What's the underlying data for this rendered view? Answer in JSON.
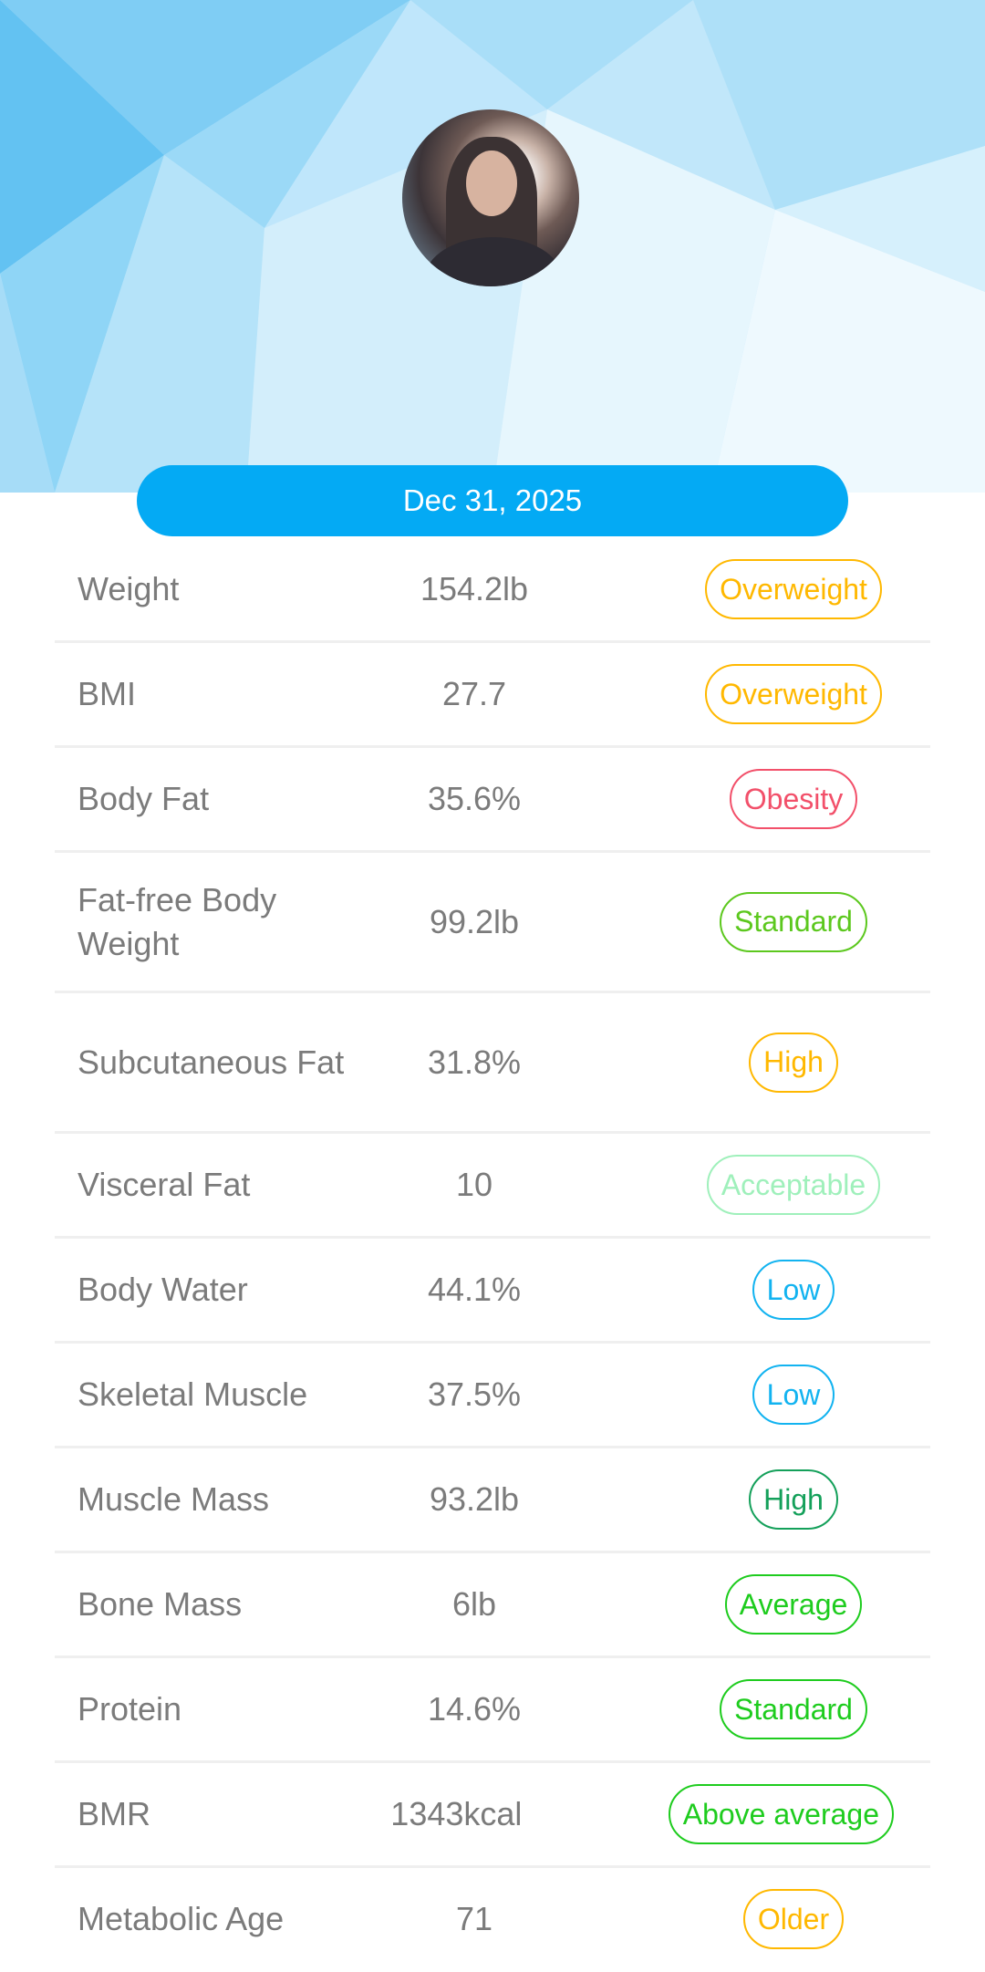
{
  "header": {
    "date": "Dec 31, 2025",
    "accent": "#04aaf4"
  },
  "metrics": [
    {
      "label": "Weight",
      "value": "154.2lb",
      "status": "Overweight",
      "color": "#ffb800"
    },
    {
      "label": "BMI",
      "value": "27.7",
      "status": "Overweight",
      "color": "#ffb800"
    },
    {
      "label": "Body Fat",
      "value": "35.6%",
      "status": "Obesity",
      "color": "#f2506a"
    },
    {
      "label": "Fat-free Body Weight",
      "value": "99.2lb",
      "status": "Standard",
      "color": "#5cc81e"
    },
    {
      "label": "Subcutaneous Fat",
      "value": "31.8%",
      "status": "High",
      "color": "#ffb800"
    },
    {
      "label": "Visceral Fat",
      "value": "10",
      "status": "Acceptable",
      "color": "#9ff0bb"
    },
    {
      "label": "Body Water",
      "value": "44.1%",
      "status": "Low",
      "color": "#12b3f0"
    },
    {
      "label": "Skeletal Muscle",
      "value": "37.5%",
      "status": "Low",
      "color": "#12b3f0"
    },
    {
      "label": "Muscle Mass",
      "value": "93.2lb",
      "status": "High",
      "color": "#14a05a"
    },
    {
      "label": "Bone Mass",
      "value": "6lb",
      "status": "Average",
      "color": "#1ecc1e"
    },
    {
      "label": "Protein",
      "value": "14.6%",
      "status": "Standard",
      "color": "#1ecc1e"
    },
    {
      "label": "BMR",
      "value": "1343kcal",
      "status": "Above average",
      "color": "#1ecc1e"
    },
    {
      "label": "Metabolic Age",
      "value": "71",
      "status": "Older",
      "color": "#ffb800"
    }
  ]
}
